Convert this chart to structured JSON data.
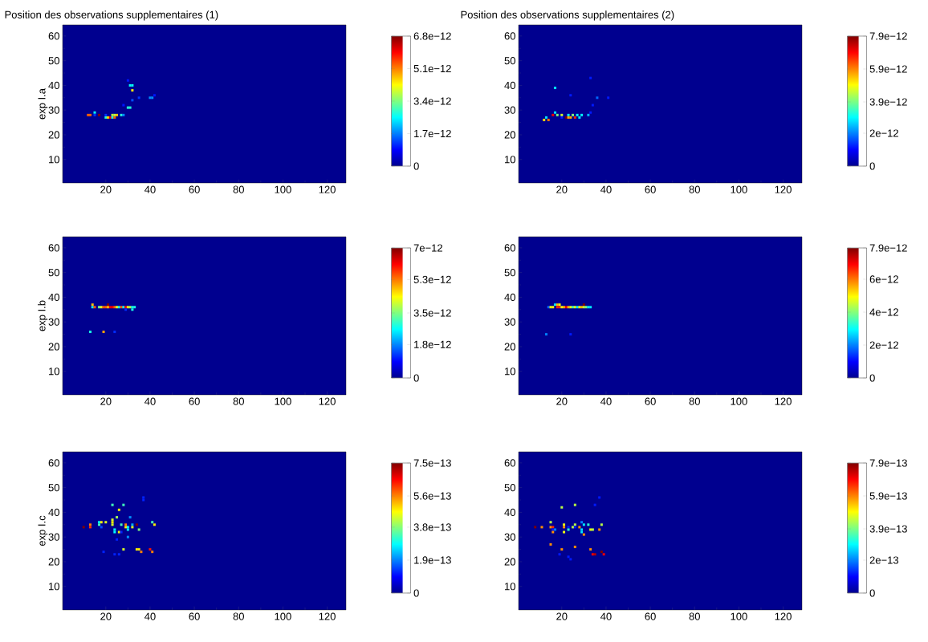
{
  "chart_data": [
    {
      "type": "scatter",
      "title": "Position des observations supplementaires (1)",
      "ylabel": "exp I.a",
      "marker": "square",
      "x": [
        30,
        31,
        32,
        32,
        35,
        32,
        28,
        30,
        31,
        40,
        41,
        42,
        12,
        13,
        15,
        15,
        17,
        20,
        20,
        21,
        22,
        23,
        24,
        23,
        24,
        25,
        27,
        28
      ],
      "values": [
        42,
        40,
        40,
        38,
        35,
        34,
        32,
        31,
        31,
        35,
        35,
        36,
        28,
        28,
        29,
        28,
        28,
        28,
        27,
        27,
        27,
        27,
        27,
        28,
        28,
        28,
        28,
        28
      ],
      "cvalues": [
        1e-12,
        2.6e-12,
        2.6e-12,
        4.4e-12,
        1.2e-12,
        1.4e-12,
        1e-12,
        2.8e-12,
        2.8e-12,
        1.8e-12,
        1.8e-12,
        1e-12,
        5.3e-12,
        5.3e-12,
        2.6e-12,
        1.2e-12,
        6.8e-12,
        1.2e-12,
        2.8e-12,
        4.4e-12,
        6e-12,
        2.8e-12,
        5.3e-12,
        3.8e-12,
        3.8e-12,
        4.6e-12,
        2.8e-12,
        1.8e-12
      ],
      "xlim": [
        0.5,
        128.5
      ],
      "ylim": [
        0.5,
        64.5
      ],
      "xticks": [
        20,
        40,
        60,
        80,
        100,
        120
      ],
      "yticks": [
        10,
        20,
        30,
        40,
        50,
        60
      ],
      "clim": [
        0,
        6.8e-12
      ],
      "cticks": [
        0,
        {
          "value": 1.7e-12,
          "label": "1.7e−12"
        },
        {
          "value": 3.4e-12,
          "label": "3.4e−12"
        },
        {
          "value": 5.1e-12,
          "label": "5.1e−12"
        },
        {
          "value": 6.8e-12,
          "label": "6.8e−12"
        }
      ]
    },
    {
      "type": "scatter",
      "title": "Position des observations supplementaires (2)",
      "marker": "square",
      "x": [
        33,
        17,
        24,
        36,
        41,
        34,
        33,
        17,
        13,
        12,
        14,
        16,
        18,
        20,
        23,
        25,
        27,
        29,
        32,
        20,
        22,
        23,
        24,
        26,
        28
      ],
      "values": [
        43,
        39,
        36,
        35,
        35,
        32,
        29,
        29,
        27,
        26,
        26,
        28,
        28,
        28,
        28,
        28,
        28,
        28,
        28,
        27,
        27,
        27,
        27,
        27,
        27
      ],
      "cvalues": [
        1.2e-12,
        2.8e-12,
        1.2e-12,
        1.8e-12,
        1.2e-12,
        1.2e-12,
        1.2e-12,
        2.8e-12,
        2.8e-12,
        5.2e-12,
        6e-12,
        7e-12,
        4e-12,
        4.6e-12,
        3e-12,
        4e-12,
        3e-12,
        3e-12,
        2.4e-12,
        1.2e-12,
        7.9e-12,
        5.6e-12,
        5.6e-12,
        6.6e-12,
        2.8e-12
      ],
      "xlim": [
        0.5,
        128.5
      ],
      "ylim": [
        0.5,
        64.5
      ],
      "xticks": [
        20,
        40,
        60,
        80,
        100,
        120
      ],
      "yticks": [
        10,
        20,
        30,
        40,
        50,
        60
      ],
      "clim": [
        0,
        7.9e-12
      ],
      "cticks": [
        0,
        {
          "value": 2e-12,
          "label": "2e−12"
        },
        {
          "value": 3.9e-12,
          "label": "3.9e−12"
        },
        {
          "value": 5.9e-12,
          "label": "5.9e−12"
        },
        {
          "value": 7.9e-12,
          "label": "7.9e−12"
        }
      ]
    },
    {
      "type": "scatter",
      "ylabel": "exp I.b",
      "marker": "square",
      "x": [
        14,
        14,
        15,
        21,
        17,
        18,
        19,
        20,
        21,
        22,
        23,
        24,
        25,
        26,
        27,
        28,
        29,
        30,
        31,
        32,
        33,
        32,
        29,
        13,
        19,
        24
      ],
      "values": [
        37,
        36,
        36,
        37,
        36,
        36,
        36,
        36,
        36,
        36,
        36,
        36,
        36,
        36,
        36,
        36,
        36,
        36,
        36,
        36,
        36,
        35,
        35,
        26,
        26,
        26
      ],
      "cvalues": [
        4.8e-12,
        2.8e-12,
        5.5e-12,
        7e-12,
        3.5e-12,
        4.2e-12,
        5.5e-12,
        5.5e-12,
        4.8e-12,
        6.2e-12,
        6.2e-12,
        5.5e-12,
        4.2e-12,
        2.8e-12,
        5.5e-12,
        2.8e-12,
        6.2e-12,
        4.2e-12,
        3.8e-12,
        2.8e-12,
        2.8e-12,
        2.8e-12,
        1.2e-12,
        2.8e-12,
        5e-12,
        1.2e-12
      ],
      "xlim": [
        0.5,
        128.5
      ],
      "ylim": [
        0.5,
        64.5
      ],
      "xticks": [
        20,
        40,
        60,
        80,
        100,
        120
      ],
      "yticks": [
        10,
        20,
        30,
        40,
        50,
        60
      ],
      "clim": [
        0,
        7e-12
      ],
      "cticks": [
        0,
        {
          "value": 1.8e-12,
          "label": "1.8e−12"
        },
        {
          "value": 3.5e-12,
          "label": "3.5e−12"
        },
        {
          "value": 5.3e-12,
          "label": "5.3e−12"
        },
        {
          "value": 7e-12,
          "label": "7e−12"
        }
      ]
    },
    {
      "type": "scatter",
      "marker": "square",
      "x": [
        17,
        18,
        19,
        30,
        14,
        15,
        16,
        18,
        19,
        20,
        21,
        22,
        23,
        24,
        25,
        26,
        27,
        28,
        29,
        30,
        31,
        32,
        33,
        13,
        24
      ],
      "values": [
        37,
        37,
        37,
        37,
        36,
        36,
        36,
        36,
        36,
        36,
        36,
        36,
        36,
        36,
        36,
        36,
        36,
        36,
        36,
        36,
        36,
        36,
        36,
        25,
        25
      ],
      "cvalues": [
        2.8e-12,
        5.5e-12,
        4.8e-12,
        7.9e-12,
        1.8e-12,
        4.8e-12,
        4.8e-12,
        6.6e-12,
        6.6e-12,
        4.8e-12,
        5.5e-12,
        7e-12,
        5.5e-12,
        4.8e-12,
        3.5e-12,
        4.8e-12,
        2.8e-12,
        4.8e-12,
        5.5e-12,
        4.4e-12,
        4e-12,
        2.8e-12,
        2.8e-12,
        2e-12,
        1.2e-12
      ],
      "xlim": [
        0.5,
        128.5
      ],
      "ylim": [
        0.5,
        64.5
      ],
      "xticks": [
        20,
        40,
        60,
        80,
        100,
        120
      ],
      "yticks": [
        10,
        20,
        30,
        40,
        50,
        60
      ],
      "clim": [
        0,
        7.9e-12
      ],
      "cticks": [
        0,
        {
          "value": 2e-12,
          "label": "2e−12"
        },
        {
          "value": 4e-12,
          "label": "4e−12"
        },
        {
          "value": 6e-12,
          "label": "6e−12"
        },
        {
          "value": 7.9e-12,
          "label": "7.9e−12"
        }
      ]
    },
    {
      "type": "scatter",
      "ylabel": "exp I.c",
      "marker": "square",
      "x": [
        37,
        37,
        23,
        28,
        26,
        25,
        31,
        23,
        23,
        23,
        17,
        18,
        20,
        17,
        18,
        13,
        13,
        10,
        27,
        29,
        29,
        30,
        30,
        32,
        32,
        34,
        35,
        41,
        42,
        24,
        24,
        26,
        27,
        30,
        25,
        28,
        34,
        35,
        36,
        40,
        41,
        19,
        24,
        26
      ],
      "values": [
        46,
        45,
        43,
        43,
        41,
        38,
        38,
        37,
        36,
        35,
        36,
        36,
        36,
        35,
        34,
        35,
        34,
        34,
        35,
        35,
        34,
        34,
        33,
        35,
        34,
        35,
        33,
        36,
        35,
        33,
        32,
        32,
        32,
        30,
        29,
        25,
        25,
        25,
        24,
        25,
        24,
        24,
        23,
        23
      ],
      "cvalues": [
        1.2e-13,
        1.2e-13,
        3.3e-13,
        3.3e-13,
        4.8e-13,
        4e-13,
        2e-13,
        4.4e-13,
        4.8e-13,
        4.4e-13,
        2.8e-13,
        4.8e-13,
        4.4e-13,
        3.3e-13,
        1.5e-13,
        5.6e-13,
        6.2e-13,
        7.5e-13,
        3.3e-13,
        5.6e-13,
        4.8e-13,
        2.8e-13,
        2.8e-13,
        2.2e-13,
        4.4e-13,
        7.5e-13,
        3.8e-13,
        3.3e-13,
        4.8e-13,
        2.8e-13,
        2.8e-13,
        4.8e-13,
        1.2e-13,
        2e-13,
        1.2e-13,
        4.4e-13,
        4.8e-13,
        4.8e-13,
        5.6e-13,
        6.4e-13,
        5.6e-13,
        1.2e-13,
        1.2e-13,
        1.2e-13
      ],
      "xlim": [
        0.5,
        128.5
      ],
      "ylim": [
        0.5,
        64.5
      ],
      "xticks": [
        20,
        40,
        60,
        80,
        100,
        120
      ],
      "yticks": [
        10,
        20,
        30,
        40,
        50,
        60
      ],
      "clim": [
        0,
        7.5e-13
      ],
      "cticks": [
        0,
        {
          "value": 1.9e-13,
          "label": "1.9e−13"
        },
        {
          "value": 3.8e-13,
          "label": "3.8e−13"
        },
        {
          "value": 5.6e-13,
          "label": "5.6e−13"
        },
        {
          "value": 7.5e-13,
          "label": "7.5e−13"
        }
      ]
    },
    {
      "type": "scatter",
      "marker": "square",
      "x": [
        37,
        35,
        20,
        26,
        15,
        8,
        11,
        15,
        16,
        16,
        17,
        16,
        21,
        21,
        21,
        23,
        23,
        25,
        26,
        26,
        28,
        29,
        30,
        29,
        29,
        30,
        32,
        33,
        34,
        37,
        38,
        15,
        20,
        26,
        33,
        38,
        34,
        35,
        39,
        19,
        23,
        24
      ],
      "values": [
        46,
        43,
        42,
        43,
        36,
        34,
        34,
        34,
        34,
        33,
        33,
        32,
        35,
        34,
        32,
        34,
        33,
        34,
        35,
        34,
        34,
        36,
        35,
        33,
        32,
        31,
        35,
        33,
        33,
        33,
        35,
        27,
        25,
        26,
        25,
        24,
        23,
        23,
        23,
        23,
        22,
        21
      ],
      "cvalues": [
        1.2e-13,
        1.2e-13,
        4.4e-13,
        4.4e-13,
        4.4e-13,
        7.9e-13,
        5.8e-13,
        5.8e-13,
        6.6e-13,
        1.2e-13,
        2e-13,
        5.8e-13,
        4.8e-13,
        5.8e-13,
        4.8e-13,
        1.2e-13,
        3.3e-13,
        4.4e-13,
        4.4e-13,
        1.2e-13,
        5.8e-13,
        2e-13,
        2.8e-13,
        2.8e-13,
        2.8e-13,
        5.8e-13,
        3.3e-13,
        4.8e-13,
        4.4e-13,
        5.8e-13,
        4.4e-13,
        5.8e-13,
        5.8e-13,
        5.8e-13,
        5.8e-13,
        7.9e-13,
        7e-13,
        7.5e-13,
        7e-13,
        1.2e-13,
        1.2e-13,
        1.2e-13
      ],
      "xlim": [
        0.5,
        128.5
      ],
      "ylim": [
        0.5,
        64.5
      ],
      "xticks": [
        20,
        40,
        60,
        80,
        100,
        120
      ],
      "yticks": [
        10,
        20,
        30,
        40,
        50,
        60
      ],
      "clim": [
        0,
        7.9e-13
      ],
      "cticks": [
        0,
        {
          "value": 2e-13,
          "label": "2e−13"
        },
        {
          "value": 3.9e-13,
          "label": "3.9e−13"
        },
        {
          "value": 5.9e-13,
          "label": "5.9e−13"
        },
        {
          "value": 7.9e-13,
          "label": "7.9e−13"
        }
      ]
    }
  ]
}
